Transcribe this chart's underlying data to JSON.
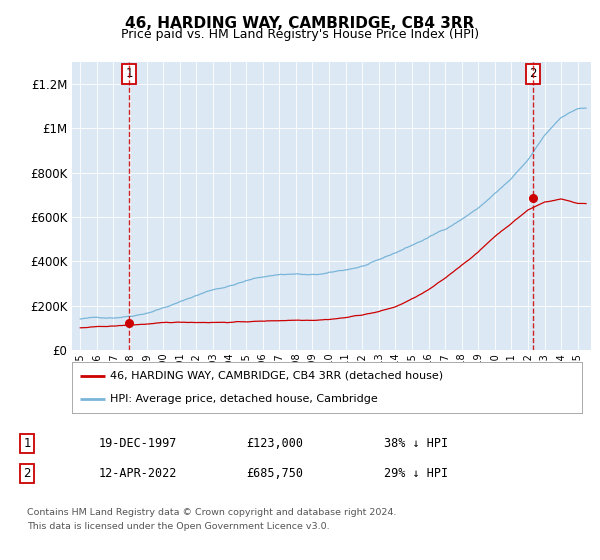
{
  "title": "46, HARDING WAY, CAMBRIDGE, CB4 3RR",
  "subtitle": "Price paid vs. HM Land Registry's House Price Index (HPI)",
  "ylim": [
    0,
    1300000
  ],
  "yticks": [
    0,
    200000,
    400000,
    600000,
    800000,
    1000000,
    1200000
  ],
  "hpi_color": "#7ab5d8",
  "price_color": "#cc0000",
  "vline_color": "#cc0000",
  "transaction1": {
    "year": 1997.96,
    "price": 123000
  },
  "transaction2": {
    "year": 2022.28,
    "price": 685750
  },
  "legend_property": "46, HARDING WAY, CAMBRIDGE, CB4 3RR (detached house)",
  "legend_hpi": "HPI: Average price, detached house, Cambridge",
  "footnote1": "Contains HM Land Registry data © Crown copyright and database right 2024.",
  "footnote2": "This data is licensed under the Open Government Licence v3.0.",
  "table_rows": [
    [
      "1",
      "19-DEC-1997",
      "£123,000",
      "38% ↓ HPI"
    ],
    [
      "2",
      "12-APR-2022",
      "£685,750",
      "29% ↓ HPI"
    ]
  ],
  "plot_bg_color": "#dce9f5",
  "hpi_base_values": [
    140000,
    145000,
    148000,
    158000,
    175000,
    200000,
    225000,
    255000,
    282000,
    300000,
    322000,
    340000,
    352000,
    355000,
    348000,
    355000,
    368000,
    385000,
    408000,
    440000,
    475000,
    510000,
    548000,
    595000,
    645000,
    710000,
    775000,
    855000,
    965000,
    1050000,
    1090000
  ],
  "prop_base_values": [
    100000,
    103000,
    106000,
    110000,
    115000,
    118000,
    120000,
    121000,
    122000,
    123000,
    125000,
    127000,
    130000,
    133000,
    135000,
    140000,
    148000,
    160000,
    175000,
    195000,
    230000,
    270000,
    320000,
    380000,
    440000,
    510000,
    570000,
    630000,
    665000,
    680000,
    660000
  ],
  "years": [
    1995,
    1996,
    1997,
    1998,
    1999,
    2000,
    2001,
    2002,
    2003,
    2004,
    2005,
    2006,
    2007,
    2008,
    2009,
    2010,
    2011,
    2012,
    2013,
    2014,
    2015,
    2016,
    2017,
    2018,
    2019,
    2020,
    2021,
    2022,
    2023,
    2024,
    2025
  ]
}
